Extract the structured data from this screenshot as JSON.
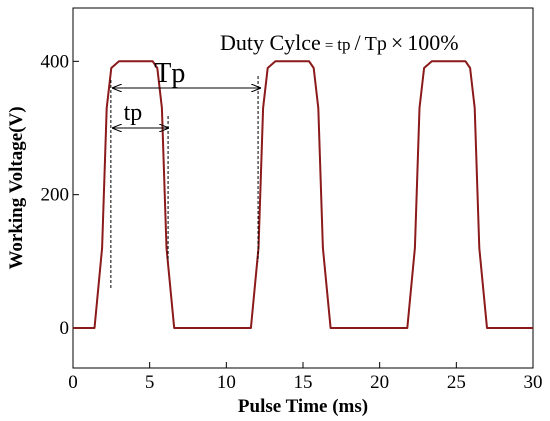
{
  "chart_data": {
    "type": "line",
    "title": "",
    "xlabel": "Pulse Time (ms)",
    "ylabel": "Working Voltage(V)",
    "xlim": [
      0,
      30
    ],
    "ylim": [
      -60,
      480
    ],
    "x_ticks": [
      0,
      5,
      10,
      15,
      20,
      25,
      30
    ],
    "y_ticks": [
      0,
      200,
      400
    ],
    "grid": false,
    "series": [
      {
        "color": "#8b1a1a",
        "x": [
          0,
          1.4,
          1.9,
          2.2,
          2.5,
          3,
          5.2,
          5.5,
          5.8,
          6.1,
          6.6,
          11.6,
          12.1,
          12.4,
          12.7,
          13.2,
          15.4,
          15.7,
          16.0,
          16.3,
          16.8,
          21.8,
          22.3,
          22.6,
          22.9,
          23.4,
          25.6,
          25.9,
          26.2,
          26.5,
          27.0,
          30
        ],
        "y": [
          0,
          0,
          120,
          330,
          390,
          400,
          400,
          390,
          330,
          120,
          0,
          0,
          120,
          330,
          390,
          400,
          400,
          390,
          330,
          120,
          0,
          0,
          120,
          330,
          390,
          400,
          400,
          390,
          330,
          120,
          0,
          0
        ]
      }
    ],
    "annotations": {
      "formula": {
        "main": "Duty Cylce",
        "eq": "=",
        "tp": "tp",
        "slash": "/",
        "Tp": "Tp",
        "times": "×",
        "pct": "100%"
      },
      "Tp_label": "Tp",
      "tp_label": "tp",
      "Tp_span": [
        2.6,
        12.2
      ],
      "tp_span": [
        2.6,
        6.2
      ],
      "Tp_arrow_y": 360,
      "tp_arrow_y": 300
    }
  }
}
